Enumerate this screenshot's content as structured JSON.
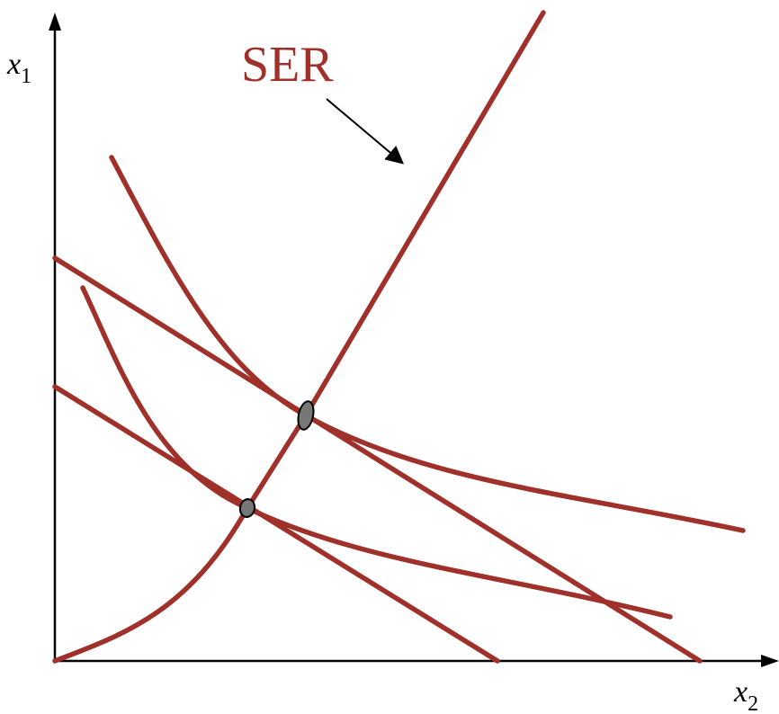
{
  "diagram": {
    "label": "SER",
    "x_axis": {
      "variable": "x",
      "subscript": "2"
    },
    "y_axis": {
      "variable": "x",
      "subscript": "1"
    },
    "colors": {
      "curve": "#a0302a",
      "label": "#a0302a",
      "axes": "#000000",
      "tangency_point": "#777777"
    },
    "icons": {
      "axis_arrowhead": "triangle-arrowhead-icon",
      "pointer_arrow": "arrow-pointer-icon",
      "tangency_marker": "ellipse-point-icon"
    }
  }
}
